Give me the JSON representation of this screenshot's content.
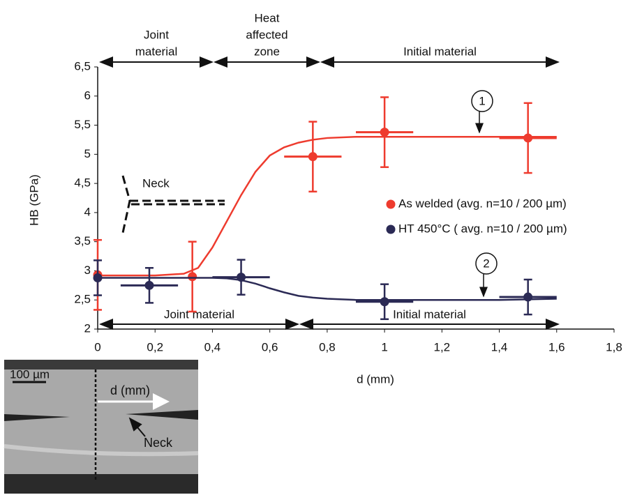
{
  "chart_data": {
    "type": "errorbar",
    "x_label": "d (mm)",
    "y_label": "HB (GPa)",
    "xlim": [
      0,
      1.8
    ],
    "ylim": [
      2,
      6.5
    ],
    "xticks": [
      0,
      {
        "value": 0.2,
        "label": "0,2"
      },
      {
        "value": 0.4,
        "label": "0,4"
      },
      {
        "value": 0.6,
        "label": "0,6"
      },
      {
        "value": 0.8,
        "label": "0,8"
      },
      1,
      {
        "value": 1.2,
        "label": "1,2"
      },
      {
        "value": 1.4,
        "label": "1,4"
      },
      {
        "value": 1.6,
        "label": "1,6"
      },
      {
        "value": 1.8,
        "label": "1,8"
      }
    ],
    "yticks": [
      2,
      {
        "value": 2.5,
        "label": "2,5"
      },
      3,
      {
        "value": 3.5,
        "label": "3,5"
      },
      4,
      {
        "value": 4.5,
        "label": "4,5"
      },
      5,
      {
        "value": 5.5,
        "label": "5,5"
      },
      6,
      {
        "value": 6.5,
        "label": "6,5"
      }
    ],
    "series": [
      {
        "name": "As welded (avg. n=10 / 200 µm)",
        "color": "#ee3b2e",
        "x": [
          0,
          0.33,
          0.75,
          1.0,
          1.5
        ],
        "values": [
          2.93,
          2.9,
          4.96,
          5.38,
          5.28
        ],
        "errors": [
          0.6,
          0.6,
          0.6,
          0.6,
          0.6
        ],
        "xerrors": [
          null,
          null,
          0.1,
          0.1,
          0.1
        ],
        "fit_x": [
          0,
          0.1,
          0.2,
          0.3,
          0.35,
          0.4,
          0.45,
          0.5,
          0.55,
          0.6,
          0.65,
          0.7,
          0.75,
          0.8,
          0.9,
          1.0,
          1.2,
          1.4,
          1.6
        ],
        "fit_y": [
          2.92,
          2.92,
          2.92,
          2.95,
          3.05,
          3.4,
          3.85,
          4.3,
          4.7,
          4.98,
          5.12,
          5.2,
          5.25,
          5.28,
          5.3,
          5.3,
          5.3,
          5.3,
          5.3
        ]
      },
      {
        "name": "HT 450°C ( avg. n=10 / 200 µm)",
        "color": "#2b2a55",
        "x": [
          0,
          0.18,
          0.5,
          1.0,
          1.5
        ],
        "values": [
          2.88,
          2.75,
          2.89,
          2.47,
          2.55
        ],
        "errors": [
          0.3,
          0.3,
          0.3,
          0.3,
          0.3
        ],
        "xerrors": [
          null,
          0.1,
          0.1,
          0.1,
          0.1
        ],
        "fit_x": [
          0,
          0.2,
          0.4,
          0.45,
          0.5,
          0.55,
          0.6,
          0.65,
          0.7,
          0.75,
          0.8,
          0.9,
          1.0,
          1.2,
          1.4,
          1.6
        ],
        "fit_y": [
          2.88,
          2.88,
          2.88,
          2.87,
          2.84,
          2.78,
          2.7,
          2.63,
          2.57,
          2.54,
          2.52,
          2.5,
          2.5,
          2.5,
          2.5,
          2.52
        ]
      }
    ],
    "annotations": {
      "top_regions": [
        [
          "Joint",
          "material"
        ],
        [
          "Heat",
          "affected",
          "zone"
        ],
        [
          "Initial material"
        ]
      ],
      "bottom_regions": [
        "Joint material",
        "Initial material"
      ],
      "curve_labels": [
        "1",
        "2"
      ],
      "neck": "Neck"
    },
    "inset": {
      "scale": "100 µm",
      "axis": "d (mm)",
      "neck": "Neck"
    }
  }
}
